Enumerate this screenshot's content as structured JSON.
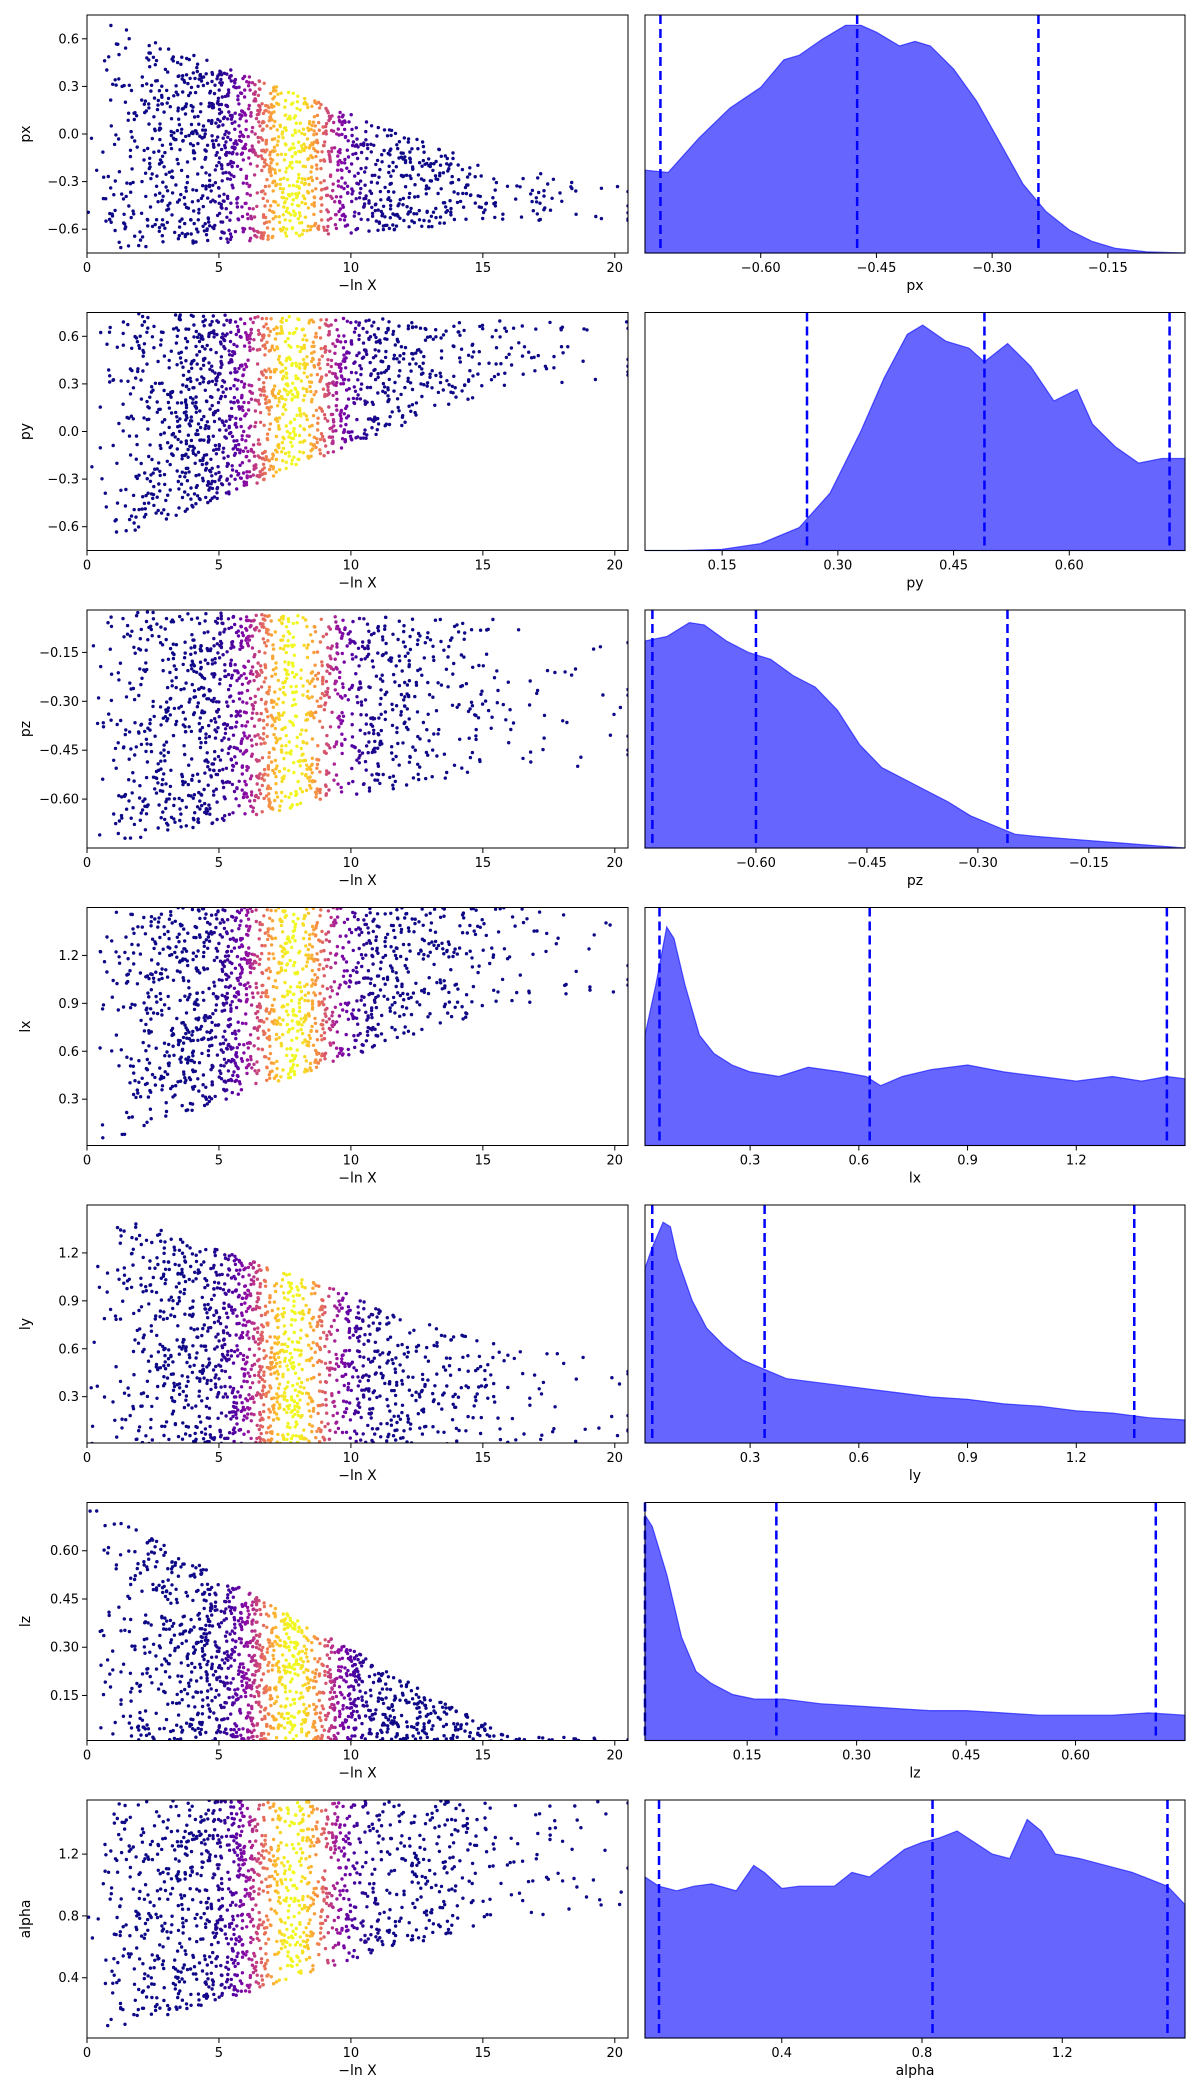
{
  "chart_data": {
    "type": "scatter+density",
    "trace_x_label": "−ln X",
    "trace_xlim": [
      0,
      20.5
    ],
    "trace_x_ticks": [
      0,
      5,
      10,
      15,
      20
    ],
    "colormap": "plasma",
    "fill_color": "#0000ff",
    "quantile_line_color": "#0000ff",
    "parameters": [
      {
        "name": "px",
        "trace_ylim": [
          -0.75,
          0.75
        ],
        "trace_y_ticks": [
          -0.6,
          -0.3,
          0.0,
          0.3,
          0.6
        ],
        "trace_y_tick_labels": [
          "−0.6",
          "−0.3",
          "0.0",
          "0.3",
          "0.6"
        ],
        "converged_value": -0.4,
        "spread_start": [
          -0.75,
          0.75
        ],
        "spread_end": [
          -0.55,
          -0.25
        ],
        "density_xlim": [
          -0.75,
          -0.05
        ],
        "density_x_ticks": [
          -0.6,
          -0.45,
          -0.3,
          -0.15
        ],
        "density_x_tick_labels": [
          "−0.60",
          "−0.45",
          "−0.30",
          "−0.15"
        ],
        "quantiles": [
          -0.73,
          -0.475,
          -0.24
        ],
        "density": {
          "x": [
            -0.75,
            -0.72,
            -0.68,
            -0.64,
            -0.6,
            -0.57,
            -0.55,
            -0.52,
            -0.49,
            -0.47,
            -0.45,
            -0.42,
            -0.4,
            -0.38,
            -0.35,
            -0.32,
            -0.29,
            -0.26,
            -0.23,
            -0.2,
            -0.17,
            -0.14,
            -0.1,
            -0.05
          ],
          "y": [
            0.36,
            0.35,
            0.5,
            0.63,
            0.72,
            0.84,
            0.86,
            0.93,
            0.99,
            0.99,
            0.96,
            0.9,
            0.92,
            0.9,
            0.8,
            0.66,
            0.48,
            0.3,
            0.18,
            0.1,
            0.05,
            0.02,
            0.005,
            0.0
          ]
        }
      },
      {
        "name": "py",
        "trace_ylim": [
          -0.75,
          0.75
        ],
        "trace_y_ticks": [
          -0.6,
          -0.3,
          0.0,
          0.3,
          0.6
        ],
        "trace_y_tick_labels": [
          "−0.6",
          "−0.3",
          "0.0",
          "0.3",
          "0.6"
        ],
        "converged_value": 0.48,
        "spread_start": [
          -0.75,
          0.75
        ],
        "spread_end": [
          0.3,
          0.7
        ],
        "density_xlim": [
          0.05,
          0.75
        ],
        "density_x_ticks": [
          0.15,
          0.3,
          0.45,
          0.6
        ],
        "density_x_tick_labels": [
          "0.15",
          "0.30",
          "0.45",
          "0.60"
        ],
        "quantiles": [
          0.26,
          0.49,
          0.73
        ],
        "density": {
          "x": [
            0.05,
            0.1,
            0.15,
            0.2,
            0.25,
            0.29,
            0.33,
            0.36,
            0.39,
            0.41,
            0.44,
            0.47,
            0.49,
            0.52,
            0.55,
            0.58,
            0.61,
            0.63,
            0.66,
            0.69,
            0.72,
            0.75
          ],
          "y": [
            0.0,
            0.0,
            0.005,
            0.03,
            0.1,
            0.25,
            0.52,
            0.75,
            0.94,
            0.98,
            0.91,
            0.88,
            0.82,
            0.9,
            0.8,
            0.65,
            0.7,
            0.55,
            0.45,
            0.38,
            0.4,
            0.4
          ]
        }
      },
      {
        "name": "pz",
        "trace_ylim": [
          -0.75,
          -0.02
        ],
        "trace_y_ticks": [
          -0.6,
          -0.45,
          -0.3,
          -0.15
        ],
        "trace_y_tick_labels": [
          "−0.60",
          "−0.45",
          "−0.30",
          "−0.15"
        ],
        "converged_value": -0.4,
        "spread_start": [
          -0.75,
          -0.02
        ],
        "spread_end": [
          -0.5,
          -0.05
        ],
        "density_xlim": [
          -0.75,
          -0.02
        ],
        "density_x_ticks": [
          -0.6,
          -0.45,
          -0.3,
          -0.15
        ],
        "density_x_tick_labels": [
          "−0.60",
          "−0.45",
          "−0.30",
          "−0.15"
        ],
        "quantiles": [
          -0.74,
          -0.6,
          -0.26
        ],
        "density": {
          "x": [
            -0.75,
            -0.72,
            -0.69,
            -0.67,
            -0.64,
            -0.61,
            -0.58,
            -0.55,
            -0.52,
            -0.49,
            -0.46,
            -0.43,
            -0.4,
            -0.37,
            -0.34,
            -0.31,
            -0.28,
            -0.25,
            -0.22,
            -0.18,
            -0.14,
            -0.1,
            -0.06,
            -0.02
          ],
          "y": [
            0.9,
            0.92,
            0.98,
            0.97,
            0.9,
            0.85,
            0.82,
            0.75,
            0.7,
            0.6,
            0.45,
            0.35,
            0.3,
            0.25,
            0.2,
            0.14,
            0.1,
            0.06,
            0.05,
            0.04,
            0.03,
            0.02,
            0.01,
            0.0
          ]
        }
      },
      {
        "name": "lx",
        "trace_ylim": [
          0.01,
          1.5
        ],
        "trace_y_ticks": [
          0.3,
          0.6,
          0.9,
          1.2
        ],
        "trace_y_tick_labels": [
          "0.3",
          "0.6",
          "0.9",
          "1.2"
        ],
        "converged_value": 0.75,
        "spread_start": [
          0.0,
          1.5
        ],
        "spread_end": [
          0.9,
          1.5
        ],
        "density_xlim": [
          0.01,
          1.5
        ],
        "density_x_ticks": [
          0.3,
          0.6,
          0.9,
          1.2
        ],
        "density_x_tick_labels": [
          "0.3",
          "0.6",
          "0.9",
          "1.2"
        ],
        "quantiles": [
          0.05,
          0.63,
          1.45
        ],
        "density": {
          "x": [
            0.01,
            0.04,
            0.07,
            0.09,
            0.12,
            0.16,
            0.2,
            0.25,
            0.3,
            0.38,
            0.46,
            0.55,
            0.62,
            0.66,
            0.72,
            0.8,
            0.9,
            1.0,
            1.1,
            1.2,
            1.3,
            1.38,
            1.45,
            1.5
          ],
          "y": [
            0.48,
            0.7,
            0.95,
            0.9,
            0.7,
            0.48,
            0.4,
            0.35,
            0.32,
            0.3,
            0.34,
            0.32,
            0.3,
            0.26,
            0.3,
            0.33,
            0.35,
            0.32,
            0.3,
            0.28,
            0.3,
            0.28,
            0.3,
            0.29
          ]
        }
      },
      {
        "name": "ly",
        "trace_ylim": [
          0.01,
          1.5
        ],
        "trace_y_ticks": [
          0.3,
          0.6,
          0.9,
          1.2
        ],
        "trace_y_tick_labels": [
          "0.3",
          "0.6",
          "0.9",
          "1.2"
        ],
        "converged_value": 0.75,
        "spread_start": [
          0.0,
          1.5
        ],
        "spread_end": [
          0.0,
          0.6
        ],
        "density_xlim": [
          0.01,
          1.5
        ],
        "density_x_ticks": [
          0.3,
          0.6,
          0.9,
          1.2
        ],
        "density_x_tick_labels": [
          "0.3",
          "0.6",
          "0.9",
          "1.2"
        ],
        "quantiles": [
          0.03,
          0.34,
          1.36
        ],
        "density": {
          "x": [
            0.01,
            0.03,
            0.06,
            0.08,
            0.1,
            0.14,
            0.18,
            0.23,
            0.28,
            0.34,
            0.4,
            0.5,
            0.6,
            0.7,
            0.8,
            0.9,
            1.0,
            1.1,
            1.2,
            1.3,
            1.4,
            1.5
          ],
          "y": [
            0.76,
            0.85,
            0.96,
            0.94,
            0.8,
            0.62,
            0.5,
            0.42,
            0.36,
            0.32,
            0.28,
            0.26,
            0.24,
            0.22,
            0.2,
            0.19,
            0.17,
            0.16,
            0.14,
            0.13,
            0.11,
            0.1
          ]
        }
      },
      {
        "name": "lz",
        "trace_ylim": [
          0.01,
          0.75
        ],
        "trace_y_ticks": [
          0.15,
          0.3,
          0.45,
          0.6
        ],
        "trace_y_tick_labels": [
          "0.15",
          "0.30",
          "0.45",
          "0.60"
        ],
        "converged_value": 0.37,
        "spread_start": [
          0.0,
          0.75
        ],
        "spread_end": [
          0.0,
          0.02
        ],
        "density_xlim": [
          0.01,
          0.75
        ],
        "density_x_ticks": [
          0.15,
          0.3,
          0.45,
          0.6
        ],
        "density_x_tick_labels": [
          "0.15",
          "0.30",
          "0.45",
          "0.60"
        ],
        "quantiles": [
          0.01,
          0.19,
          0.71
        ],
        "density": {
          "x": [
            0.01,
            0.02,
            0.04,
            0.06,
            0.08,
            0.1,
            0.13,
            0.16,
            0.2,
            0.25,
            0.3,
            0.35,
            0.4,
            0.45,
            0.5,
            0.55,
            0.6,
            0.65,
            0.7,
            0.75
          ],
          "y": [
            0.98,
            0.93,
            0.72,
            0.45,
            0.3,
            0.25,
            0.2,
            0.18,
            0.18,
            0.16,
            0.15,
            0.14,
            0.13,
            0.13,
            0.12,
            0.11,
            0.11,
            0.11,
            0.12,
            0.11
          ]
        }
      },
      {
        "name": "alpha",
        "trace_ylim": [
          0.01,
          1.55
        ],
        "trace_y_ticks": [
          0.4,
          0.8,
          1.2
        ],
        "trace_y_tick_labels": [
          "0.4",
          "0.8",
          "1.2"
        ],
        "converged_value": 0.78,
        "spread_start": [
          0.0,
          1.55
        ],
        "spread_end": [
          0.8,
          1.55
        ],
        "density_xlim": [
          0.01,
          1.55
        ],
        "density_x_ticks": [
          0.4,
          0.8,
          1.2
        ],
        "density_x_tick_labels": [
          "0.4",
          "0.8",
          "1.2"
        ],
        "quantiles": [
          0.05,
          0.83,
          1.5
        ],
        "density": {
          "x": [
            0.01,
            0.05,
            0.1,
            0.15,
            0.2,
            0.27,
            0.32,
            0.35,
            0.4,
            0.45,
            0.5,
            0.55,
            0.6,
            0.65,
            0.7,
            0.75,
            0.8,
            0.85,
            0.9,
            0.95,
            1.0,
            1.05,
            1.1,
            1.14,
            1.18,
            1.25,
            1.3,
            1.4,
            1.5,
            1.55
          ],
          "y": [
            0.7,
            0.66,
            0.64,
            0.66,
            0.67,
            0.64,
            0.75,
            0.72,
            0.65,
            0.66,
            0.66,
            0.66,
            0.72,
            0.7,
            0.76,
            0.82,
            0.85,
            0.87,
            0.9,
            0.85,
            0.8,
            0.78,
            0.95,
            0.9,
            0.8,
            0.78,
            0.76,
            0.72,
            0.66,
            0.58
          ]
        }
      }
    ]
  }
}
